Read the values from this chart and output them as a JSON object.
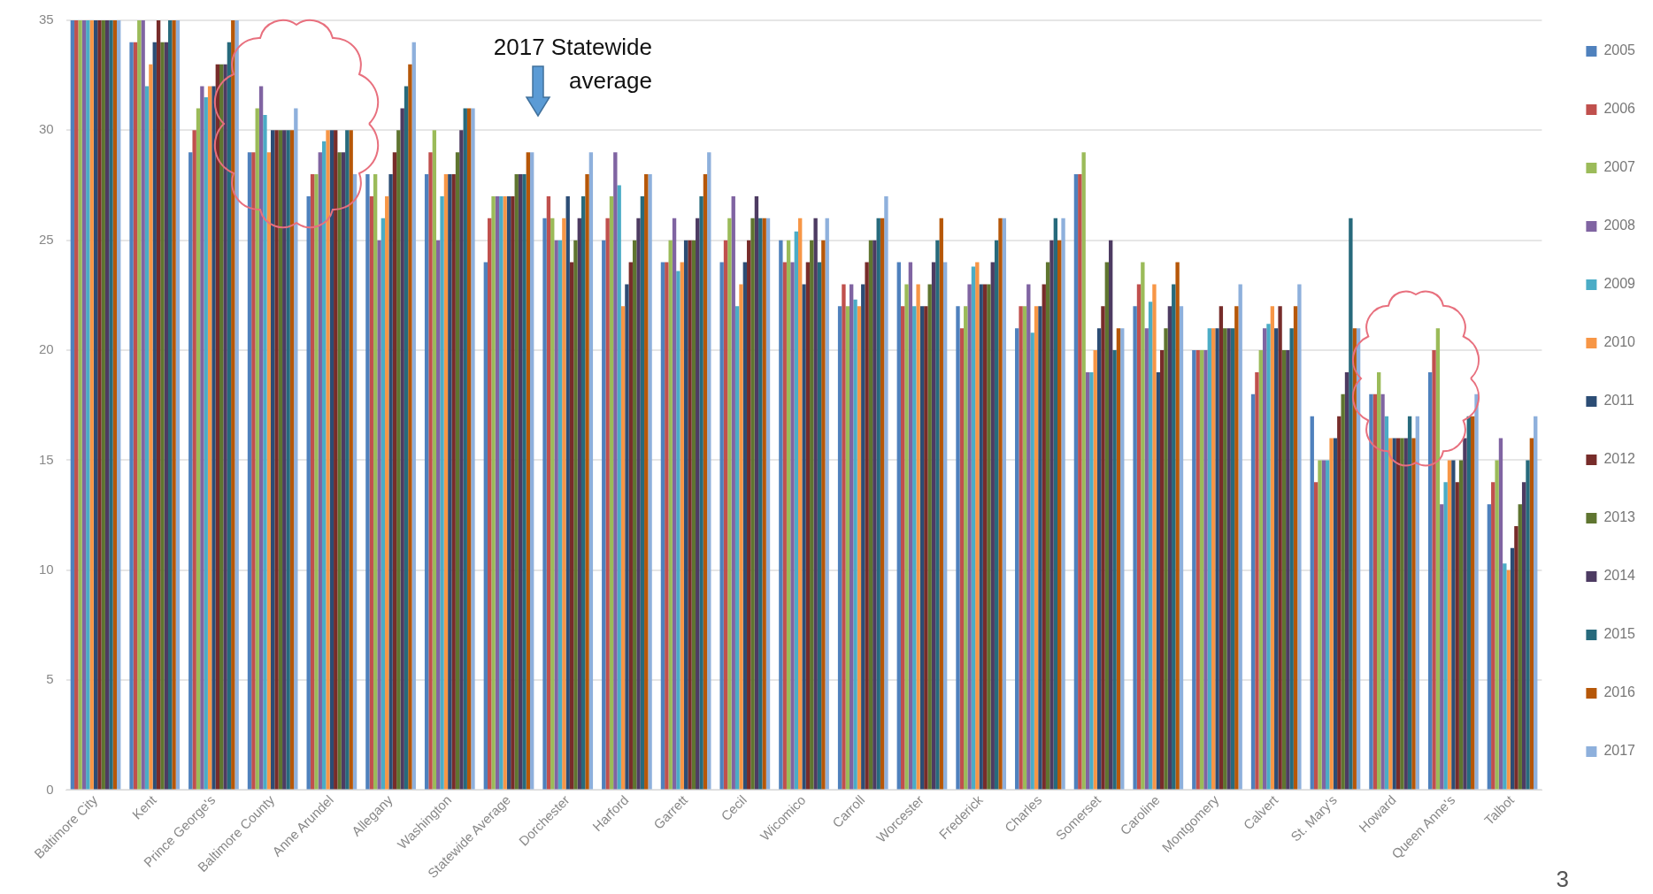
{
  "chart_data": {
    "type": "bar",
    "categories": [
      "Baltimore City",
      "Kent",
      "Prince George's",
      "Baltimore County",
      "Anne Arundel",
      "Allegany",
      "Washington",
      "Statewide Average",
      "Dorchester",
      "Harford",
      "Garrett",
      "Cecil",
      "Wicomico",
      "Carroll",
      "Worcester",
      "Frederick",
      "Charles",
      "Somerset",
      "Caroline",
      "Montgomery",
      "Calvert",
      "St. Mary's",
      "Howard",
      "Queen Anne's",
      "Talbot"
    ],
    "series": [
      {
        "name": "2005",
        "color": "#4f81bd",
        "values": [
          35,
          34,
          29,
          29,
          27,
          28,
          28,
          24,
          26,
          25,
          24,
          24,
          25,
          22,
          24,
          22,
          21,
          28,
          22,
          20,
          18,
          17,
          18,
          19,
          13
        ]
      },
      {
        "name": "2006",
        "color": "#c0504d",
        "values": [
          35,
          34,
          30,
          29,
          28,
          27,
          29,
          26,
          27,
          26,
          24,
          25,
          24,
          23,
          22,
          21,
          22,
          28,
          23,
          20,
          19,
          14,
          18,
          20,
          14
        ]
      },
      {
        "name": "2007",
        "color": "#9bbb59",
        "values": [
          35,
          35,
          31,
          31,
          28,
          28,
          30,
          27,
          26,
          27,
          25,
          26,
          25,
          22,
          23,
          22,
          22,
          29,
          24,
          20,
          20,
          15,
          19,
          21,
          15
        ]
      },
      {
        "name": "2008",
        "color": "#8064a2",
        "values": [
          35,
          35,
          32,
          32,
          29,
          25,
          25,
          27,
          25,
          29,
          26,
          27,
          24,
          23,
          24,
          23,
          23,
          19,
          21,
          20,
          21,
          15,
          18,
          13,
          16
        ]
      },
      {
        "name": "2009",
        "color": "#4bacc6",
        "values": [
          35,
          32,
          31.5,
          30.7,
          29.5,
          26,
          27,
          27,
          25,
          27.5,
          23.6,
          22,
          25.4,
          22.3,
          22,
          23.8,
          20.8,
          19,
          22.2,
          21,
          21.2,
          15,
          17,
          14,
          10.3
        ]
      },
      {
        "name": "2010",
        "color": "#f79646",
        "values": [
          35,
          33,
          32,
          29,
          30,
          27,
          28,
          27,
          26,
          22,
          24,
          23,
          26,
          22,
          23,
          24,
          22,
          20,
          23,
          21,
          22,
          16,
          16,
          15,
          10
        ]
      },
      {
        "name": "2011",
        "color": "#2c4d75",
        "values": [
          35,
          34,
          32,
          30,
          30,
          28,
          28,
          27,
          27,
          23,
          25,
          24,
          23,
          23,
          22,
          23,
          22,
          21,
          19,
          21,
          21,
          16,
          16,
          15,
          11
        ]
      },
      {
        "name": "2012",
        "color": "#772c2a",
        "values": [
          35,
          35,
          33,
          30,
          30,
          29,
          28,
          27,
          24,
          24,
          25,
          25,
          24,
          24,
          22,
          23,
          23,
          22,
          20,
          22,
          22,
          17,
          16,
          14,
          12
        ]
      },
      {
        "name": "2013",
        "color": "#5f7530",
        "values": [
          35,
          34,
          33,
          30,
          29,
          30,
          29,
          28,
          25,
          25,
          25,
          26,
          25,
          25,
          23,
          23,
          24,
          24,
          21,
          21,
          20,
          18,
          16,
          15,
          13
        ]
      },
      {
        "name": "2014",
        "color": "#4d3b62",
        "values": [
          35,
          34,
          33,
          30,
          29,
          31,
          30,
          28,
          26,
          26,
          26,
          27,
          26,
          25,
          24,
          24,
          25,
          25,
          22,
          21,
          20,
          19,
          16,
          16,
          14
        ]
      },
      {
        "name": "2015",
        "color": "#276a7c",
        "values": [
          35,
          35,
          34,
          30,
          30,
          32,
          31,
          28,
          27,
          27,
          27,
          26,
          24,
          26,
          25,
          25,
          26,
          20,
          23,
          21,
          21,
          26,
          17,
          17,
          15
        ]
      },
      {
        "name": "2016",
        "color": "#b65708",
        "values": [
          35,
          35,
          35,
          30,
          30,
          33,
          31,
          29,
          28,
          28,
          28,
          26,
          25,
          26,
          26,
          26,
          25,
          21,
          24,
          22,
          22,
          21,
          16,
          17,
          16
        ]
      },
      {
        "name": "2017",
        "color": "#8eb0dc",
        "values": [
          35,
          35,
          35,
          31,
          28,
          34,
          31,
          29,
          29,
          28,
          29,
          26,
          26,
          27,
          24,
          26,
          26,
          21,
          22,
          23,
          23,
          21,
          17,
          18,
          17
        ]
      }
    ],
    "ylim": [
      0,
      35
    ],
    "yticks": [
      0,
      5,
      10,
      15,
      20,
      25,
      30,
      35
    ],
    "grid": "y",
    "legend": "right",
    "annotations": [
      "2017 Statewide average",
      "3"
    ]
  }
}
